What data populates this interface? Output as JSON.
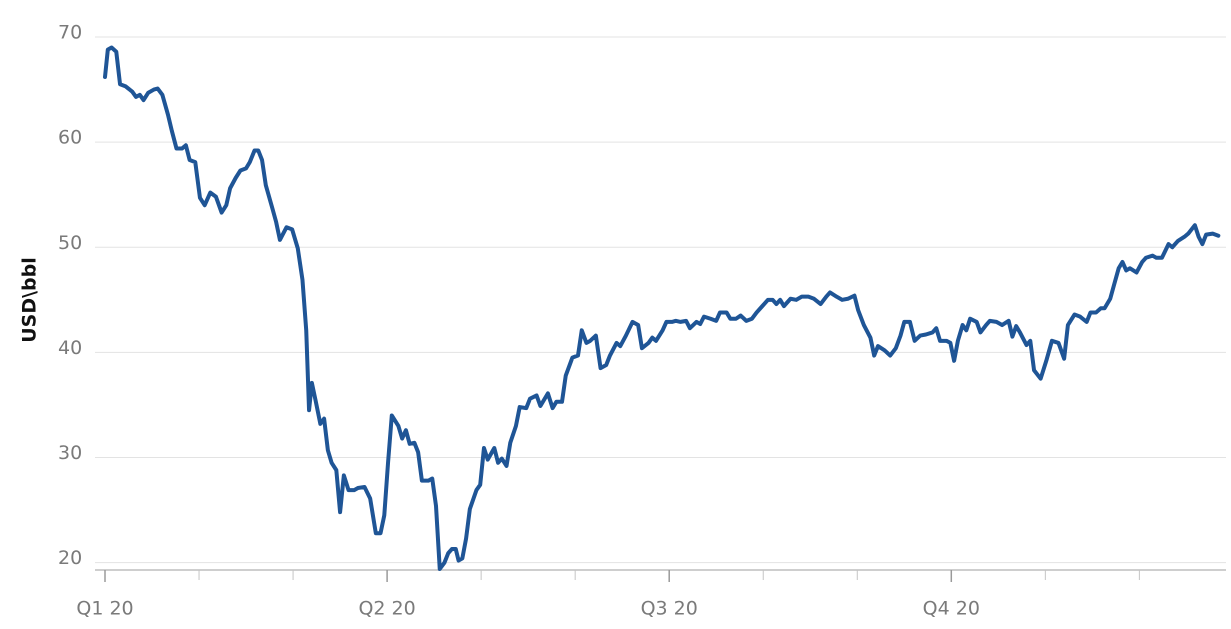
{
  "chart_data": {
    "type": "line",
    "y_label": "USD\\bbl",
    "color": "#1f5596",
    "grid": true,
    "ylim": [
      19.3,
      70
    ],
    "yticks": [
      20,
      30,
      40,
      50,
      60,
      70
    ],
    "xlim": [
      0,
      11.9
    ],
    "xticks": [
      {
        "value": 0,
        "label": "Q1 20"
      },
      {
        "value": 3,
        "label": "Q2 20"
      },
      {
        "value": 6,
        "label": "Q3 20"
      },
      {
        "value": 9,
        "label": "Q4 20"
      }
    ],
    "minor_xticks": [
      1,
      2,
      4,
      5,
      7,
      8,
      10,
      11
    ],
    "x": [
      0,
      0.03,
      0.07,
      0.12,
      0.16,
      0.22,
      0.29,
      0.33,
      0.37,
      0.41,
      0.46,
      0.52,
      0.56,
      0.61,
      0.67,
      0.71,
      0.76,
      0.82,
      0.86,
      0.9,
      0.96,
      1.01,
      1.06,
      1.12,
      1.18,
      1.24,
      1.29,
      1.33,
      1.39,
      1.44,
      1.5,
      1.54,
      1.59,
      1.63,
      1.67,
      1.71,
      1.78,
      1.82,
      1.86,
      1.93,
      1.99,
      2.05,
      2.1,
      2.14,
      2.17,
      2.2,
      2.24,
      2.29,
      2.33,
      2.37,
      2.41,
      2.46,
      2.5,
      2.54,
      2.59,
      2.65,
      2.69,
      2.76,
      2.82,
      2.88,
      2.93,
      2.97,
      3.01,
      3.05,
      3.12,
      3.16,
      3.2,
      3.24,
      3.29,
      3.33,
      3.37,
      3.44,
      3.48,
      3.52,
      3.56,
      3.61,
      3.65,
      3.69,
      3.73,
      3.76,
      3.8,
      3.84,
      3.88,
      3.95,
      3.99,
      4.03,
      4.07,
      4.14,
      4.18,
      4.22,
      4.27,
      4.31,
      4.37,
      4.41,
      4.48,
      4.52,
      4.59,
      4.63,
      4.71,
      4.76,
      4.8,
      4.86,
      4.9,
      4.97,
      5.03,
      5.07,
      5.12,
      5.16,
      5.22,
      5.27,
      5.33,
      5.37,
      5.44,
      5.48,
      5.54,
      5.61,
      5.67,
      5.71,
      5.78,
      5.82,
      5.86,
      5.93,
      5.97,
      6.03,
      6.07,
      6.12,
      6.18,
      6.22,
      6.29,
      6.33,
      6.37,
      6.44,
      6.5,
      6.54,
      6.61,
      6.65,
      6.71,
      6.76,
      6.82,
      6.88,
      6.93,
      6.99,
      7.05,
      7.1,
      7.14,
      7.18,
      7.22,
      7.29,
      7.35,
      7.41,
      7.48,
      7.54,
      7.61,
      7.67,
      7.71,
      7.78,
      7.84,
      7.9,
      7.97,
      8.01,
      8.07,
      8.14,
      8.18,
      8.22,
      8.29,
      8.35,
      8.41,
      8.46,
      8.5,
      8.56,
      8.61,
      8.67,
      8.73,
      8.8,
      8.84,
      8.88,
      8.95,
      8.99,
      9.03,
      9.07,
      9.12,
      9.16,
      9.2,
      9.27,
      9.31,
      9.37,
      9.41,
      9.48,
      9.54,
      9.61,
      9.65,
      9.69,
      9.73,
      9.8,
      9.84,
      9.88,
      9.95,
      10.01,
      10.07,
      10.14,
      10.2,
      10.24,
      10.31,
      10.37,
      10.44,
      10.48,
      10.54,
      10.59,
      10.63,
      10.69,
      10.73,
      10.78,
      10.82,
      10.86,
      10.9,
      10.97,
      11.03,
      11.07,
      11.14,
      11.18,
      11.24,
      11.31,
      11.35,
      11.41,
      11.48,
      11.52,
      11.59,
      11.63,
      11.67,
      11.71,
      11.78,
      11.84
    ],
    "values": [
      66.2,
      68.8,
      69.0,
      68.6,
      65.5,
      65.3,
      64.8,
      64.3,
      64.5,
      64.0,
      64.7,
      65.0,
      65.1,
      64.5,
      62.6,
      61.1,
      59.4,
      59.4,
      59.7,
      58.3,
      58.1,
      54.7,
      54.0,
      55.2,
      54.8,
      53.3,
      54.0,
      55.6,
      56.6,
      57.3,
      57.5,
      58.1,
      59.2,
      59.2,
      58.3,
      55.9,
      53.7,
      52.4,
      50.7,
      51.9,
      51.7,
      49.9,
      46.9,
      42.1,
      34.5,
      37.1,
      35.4,
      33.2,
      33.7,
      30.7,
      29.5,
      28.8,
      24.8,
      28.3,
      26.9,
      26.9,
      27.1,
      27.2,
      26.1,
      22.8,
      22.8,
      24.5,
      29.5,
      34.0,
      33.0,
      31.8,
      32.6,
      31.3,
      31.4,
      30.5,
      27.8,
      27.8,
      28.0,
      25.4,
      19.4,
      20.0,
      20.9,
      21.3,
      21.3,
      20.2,
      20.4,
      22.3,
      25.1,
      26.9,
      27.4,
      30.9,
      29.8,
      30.9,
      29.5,
      29.9,
      29.2,
      31.4,
      33.0,
      34.8,
      34.7,
      35.6,
      35.9,
      34.9,
      36.1,
      34.7,
      35.3,
      35.3,
      37.8,
      39.5,
      39.7,
      42.1,
      40.9,
      41.1,
      41.6,
      38.5,
      38.8,
      39.7,
      40.9,
      40.6,
      41.6,
      42.9,
      42.6,
      40.4,
      40.9,
      41.4,
      41.1,
      42.1,
      42.9,
      42.9,
      43.0,
      42.9,
      43.0,
      42.3,
      42.9,
      42.7,
      43.4,
      43.2,
      43.0,
      43.8,
      43.8,
      43.2,
      43.2,
      43.5,
      43.0,
      43.2,
      43.8,
      44.4,
      45.0,
      45.0,
      44.6,
      45.0,
      44.4,
      45.1,
      45.0,
      45.3,
      45.3,
      45.1,
      44.6,
      45.3,
      45.7,
      45.3,
      45.0,
      45.1,
      45.4,
      44.0,
      42.6,
      41.4,
      39.7,
      40.6,
      40.2,
      39.7,
      40.4,
      41.6,
      42.9,
      42.9,
      41.1,
      41.6,
      41.7,
      41.9,
      42.3,
      41.1,
      41.1,
      40.9,
      39.2,
      41.1,
      42.6,
      42.1,
      43.2,
      42.9,
      41.9,
      42.6,
      43.0,
      42.9,
      42.6,
      43.0,
      41.5,
      42.5,
      41.9,
      40.7,
      41.1,
      38.3,
      37.5,
      39.2,
      41.1,
      40.9,
      39.4,
      42.6,
      43.6,
      43.4,
      42.9,
      43.8,
      43.8,
      44.2,
      44.2,
      45.1,
      46.4,
      48.0,
      48.6,
      47.8,
      48.0,
      47.6,
      48.6,
      49.0,
      49.2,
      49.0,
      49.0,
      50.3,
      50.0,
      50.6,
      51.0,
      51.3,
      52.1,
      51.0,
      50.3,
      51.2,
      51.3,
      51.1
    ]
  }
}
